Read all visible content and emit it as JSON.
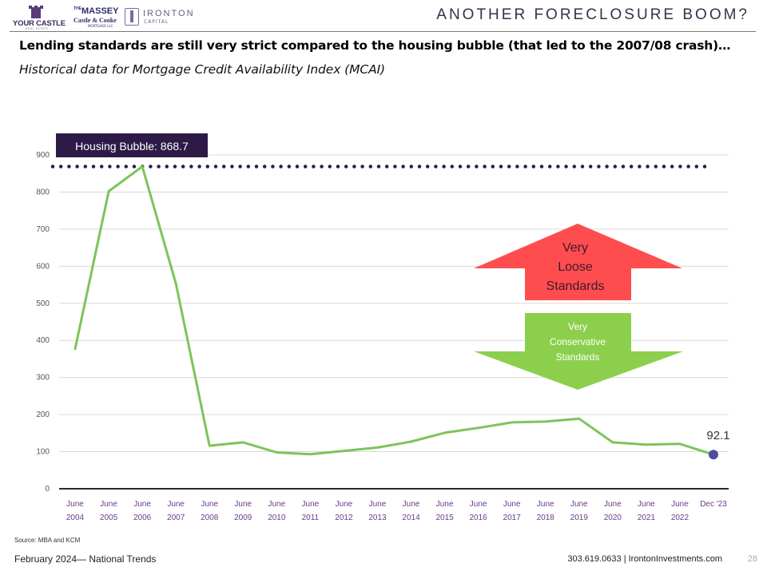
{
  "header": {
    "logos": {
      "castle_name": "YOUR CASTLE",
      "castle_sub": "REAL ESTATE",
      "massey_the": "THE",
      "massey_name": "MASSEY",
      "massey_sub": "Castle & Cooke",
      "massey_sub2": "MORTGAGE LLC",
      "ironton_name": "IRONTON",
      "ironton_sub": "CAPITAL"
    },
    "headline": "ANOTHER FORECLOSURE BOOM?"
  },
  "subhead": "Lending standards  are still very strict compared to the housing bubble (that led to the 2007/08 crash)…",
  "subtitle": "Historical data for Mortgage Credit Availability Index (MCAI)",
  "colors": {
    "line": "#7dc45a",
    "reference": "#2e1a47",
    "endpoint": "#4e4b9e",
    "loose_arrow": "#ff4d4f",
    "conservative_arrow": "#8ccf4d",
    "axis_labels": "#6b3a8a"
  },
  "chart_data": {
    "type": "line",
    "title": "",
    "xlabel": "",
    "ylabel": "",
    "ylim": [
      0,
      900
    ],
    "yticks": [
      0,
      100,
      200,
      300,
      400,
      500,
      600,
      700,
      800,
      900
    ],
    "grid": true,
    "categories": [
      [
        "June",
        "2004"
      ],
      [
        "June",
        "2005"
      ],
      [
        "June",
        "2006"
      ],
      [
        "June",
        "2007"
      ],
      [
        "June",
        "2008"
      ],
      [
        "June",
        "2009"
      ],
      [
        "June",
        "2010"
      ],
      [
        "June",
        "2011"
      ],
      [
        "June",
        "2012"
      ],
      [
        "June",
        "2013"
      ],
      [
        "June",
        "2014"
      ],
      [
        "June",
        "2015"
      ],
      [
        "June",
        "2016"
      ],
      [
        "June",
        "2017"
      ],
      [
        "June",
        "2018"
      ],
      [
        "June",
        "2019"
      ],
      [
        "June",
        "2020"
      ],
      [
        "June",
        "2021"
      ],
      [
        "June",
        "2022"
      ],
      [
        "Dec '23",
        ""
      ]
    ],
    "series": [
      {
        "values": [
          377,
          802,
          868.7,
          553,
          116,
          125,
          98,
          93,
          102,
          111,
          127,
          151,
          164,
          179,
          181,
          189,
          125,
          119,
          121,
          92.1
        ]
      }
    ],
    "reference_line": {
      "value": 868.7,
      "label": "Housing Bubble: 868.7",
      "style": "dotted"
    },
    "endpoint_label": "92.1",
    "annotations": {
      "loose": [
        "Very",
        "Loose",
        "Standards"
      ],
      "conservative": [
        "Very",
        "Conservative",
        "Standards"
      ]
    }
  },
  "footer": {
    "source": "Source: MBA and KCM",
    "date": "February 2024— National Trends",
    "contact": "303.619.0633 | IrontonInvestments.com",
    "page": "28"
  }
}
